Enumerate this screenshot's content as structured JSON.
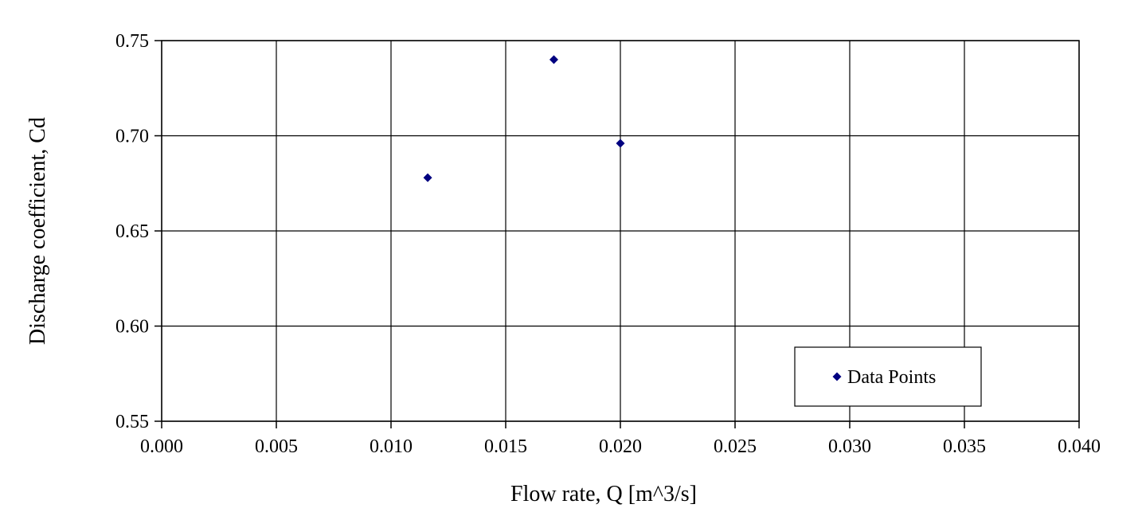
{
  "chart_data": {
    "type": "scatter",
    "title": "",
    "xlabel": "Flow rate, Q [m^3/s]",
    "ylabel": "Discharge coefficient, Cd",
    "xlim": [
      0.0,
      0.04
    ],
    "ylim": [
      0.55,
      0.75
    ],
    "x_ticks": [
      "0.000",
      "0.005",
      "0.010",
      "0.015",
      "0.020",
      "0.025",
      "0.030",
      "0.035",
      "0.040"
    ],
    "y_ticks": [
      "0.55",
      "0.60",
      "0.65",
      "0.70",
      "0.75"
    ],
    "grid": true,
    "legend_position": "bottom-right",
    "series": [
      {
        "name": "Data Points",
        "color": "#000080",
        "marker": "diamond",
        "points": [
          {
            "x": 0.0116,
            "y": 0.678
          },
          {
            "x": 0.0171,
            "y": 0.74
          },
          {
            "x": 0.02,
            "y": 0.696
          }
        ]
      }
    ]
  }
}
